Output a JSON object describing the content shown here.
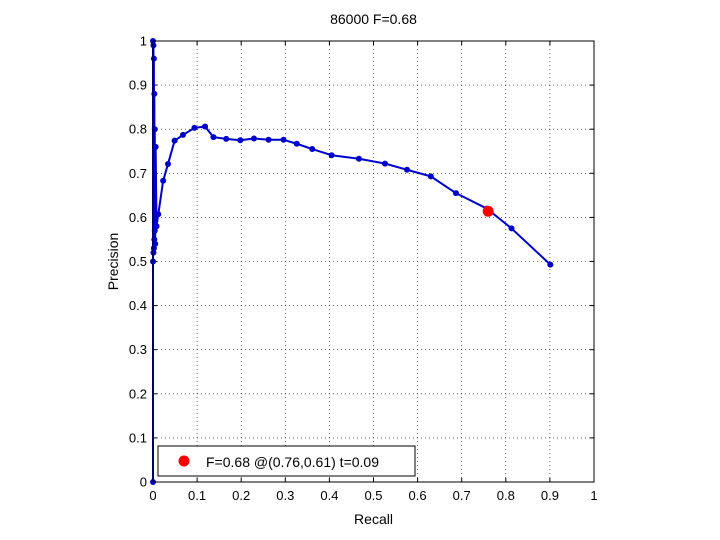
{
  "chart_data": {
    "type": "line",
    "title": "86000 F=0.68",
    "xlabel": "Recall",
    "ylabel": "Precision",
    "xlim": [
      0,
      1
    ],
    "ylim": [
      0,
      1
    ],
    "xticks": [
      "0",
      "0.1",
      "0.2",
      "0.3",
      "0.4",
      "0.5",
      "0.6",
      "0.7",
      "0.8",
      "0.9",
      "1"
    ],
    "yticks": [
      "0",
      "0.1",
      "0.2",
      "0.3",
      "0.4",
      "0.5",
      "0.6",
      "0.7",
      "0.8",
      "0.9",
      "1"
    ],
    "grid": true,
    "grid_style": "dotted",
    "line_color": "#0000cc",
    "marker_color": "#0000cc",
    "series": [
      {
        "x": [
          0.0,
          0.0,
          0.0,
          0.001,
          0.001,
          0.002,
          0.002,
          0.003,
          0.003,
          0.004,
          0.004,
          0.005,
          0.006,
          0.008,
          0.012,
          0.023,
          0.034,
          0.049,
          0.068,
          0.094,
          0.118,
          0.137,
          0.166,
          0.198,
          0.229,
          0.262,
          0.296,
          0.326,
          0.361,
          0.405,
          0.467,
          0.526,
          0.576,
          0.63,
          0.687,
          0.757,
          0.813,
          0.901
        ],
        "y": [
          0.0,
          0.5,
          1.0,
          0.52,
          0.99,
          0.53,
          0.96,
          0.55,
          0.88,
          0.57,
          0.8,
          0.54,
          0.76,
          0.58,
          0.607,
          0.683,
          0.721,
          0.774,
          0.787,
          0.803,
          0.806,
          0.782,
          0.778,
          0.775,
          0.779,
          0.776,
          0.776,
          0.767,
          0.755,
          0.741,
          0.733,
          0.722,
          0.708,
          0.693,
          0.655,
          0.62,
          0.575,
          0.493
        ]
      }
    ],
    "highlight": {
      "x": 0.76,
      "y": 0.614,
      "color": "#ff0000"
    },
    "legend": {
      "label": "F=0.68 @(0.76,0.61) t=0.09",
      "placement": "bottom-left"
    }
  }
}
